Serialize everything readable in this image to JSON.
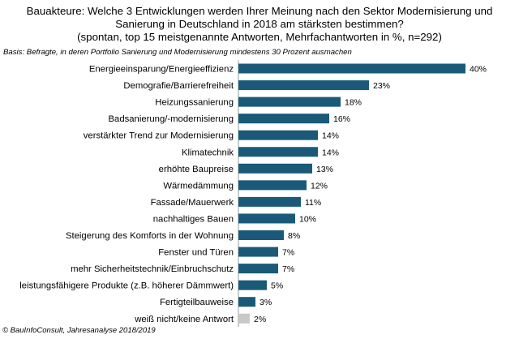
{
  "title_lines": [
    "Bauakteure: Welche 3 Entwicklungen werden Ihrer Meinung nach den Sektor Modernisierung und",
    "Sanierung in Deutschland in 2018 am stärksten bestimmen?",
    "(spontan, top 15 meistgenannte Antworten, Mehrfachantworten in %, n=292)"
  ],
  "basis": "Basis: Befragte, in deren Portfolio Sanierung und Modernisierung mindestens 30 Prozent ausmachen",
  "footer": "© BauInfoConsult, Jahresanalyse 2018/2019",
  "chart_data": {
    "type": "bar",
    "orientation": "horizontal",
    "categories": [
      "Energieeinsparung/Energieeffizienz",
      "Demografie/Barrierefreiheit",
      "Heizungssanierung",
      "Badsanierung/-modernisierung",
      "verstärkter Trend zur Modernisierung",
      "Klimatechnik",
      "erhöhte Baupreise",
      "Wärmedämmung",
      "Fassade/Mauerwerk",
      "nachhaltiges Bauen",
      "Steigerung des Komforts in der Wohnung",
      "Fenster und Türen",
      "mehr Sicherheitstechnik/Einbruchschutz",
      "leistungsfähigere Produkte (z.B. höherer Dämmwert)",
      "Fertigteilbauweise",
      "weiß nicht/keine Antwort"
    ],
    "values": [
      40,
      23,
      18,
      16,
      14,
      14,
      13,
      12,
      11,
      10,
      8,
      7,
      7,
      5,
      3,
      2
    ],
    "value_labels": [
      "40%",
      "23%",
      "18%",
      "16%",
      "14%",
      "14%",
      "13%",
      "12%",
      "11%",
      "10%",
      "8%",
      "7%",
      "7%",
      "5%",
      "3%",
      "2%"
    ],
    "xlim": [
      0,
      40
    ],
    "colors": {
      "bar": "#1a5a78",
      "bar_highlight_last": "#c8c8c8"
    },
    "grid": false
  }
}
